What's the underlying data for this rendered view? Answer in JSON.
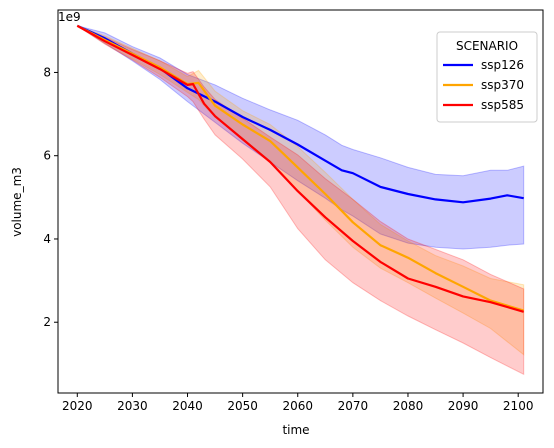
{
  "chart_data": {
    "type": "line",
    "title": "",
    "xlabel": "time",
    "ylabel": "volume_m3",
    "y_offset_label": "1e9",
    "xlim": [
      2016.5,
      2104.5
    ],
    "ylim": [
      0.3,
      9.5
    ],
    "x_ticks": [
      2020,
      2030,
      2040,
      2050,
      2060,
      2070,
      2080,
      2090,
      2100
    ],
    "y_ticks": [
      2,
      4,
      6,
      8
    ],
    "y_tick_labels": [
      "2",
      "4",
      "6",
      "8"
    ],
    "legend": {
      "title": "SCENARIO",
      "placement": "top-right"
    },
    "grid": false,
    "series": [
      {
        "name": "ssp126",
        "color": "#0000ff",
        "x": [
          2020,
          2025,
          2030,
          2035,
          2040,
          2045,
          2050,
          2055,
          2060,
          2065,
          2068,
          2070,
          2075,
          2080,
          2085,
          2090,
          2095,
          2098,
          2101
        ],
        "y": [
          9.12,
          8.82,
          8.45,
          8.1,
          7.62,
          7.3,
          6.93,
          6.62,
          6.27,
          5.88,
          5.65,
          5.58,
          5.25,
          5.08,
          4.95,
          4.88,
          4.97,
          5.05,
          4.98
        ],
        "lower": [
          9.12,
          8.7,
          8.28,
          7.83,
          7.3,
          6.8,
          6.3,
          5.85,
          5.4,
          4.98,
          4.7,
          4.55,
          4.12,
          3.9,
          3.8,
          3.76,
          3.8,
          3.85,
          3.88
        ],
        "upper": [
          9.12,
          8.95,
          8.62,
          8.35,
          7.95,
          7.7,
          7.38,
          7.1,
          6.85,
          6.5,
          6.25,
          6.15,
          5.95,
          5.72,
          5.55,
          5.52,
          5.65,
          5.65,
          5.75
        ]
      },
      {
        "name": "ssp370",
        "color": "#ffa500",
        "x": [
          2020,
          2025,
          2030,
          2035,
          2040,
          2042,
          2045,
          2050,
          2055,
          2060,
          2065,
          2070,
          2075,
          2080,
          2085,
          2090,
          2095,
          2101
        ],
        "y": [
          9.12,
          8.78,
          8.45,
          8.12,
          7.72,
          7.75,
          7.2,
          6.75,
          6.35,
          5.72,
          5.08,
          4.4,
          3.85,
          3.55,
          3.18,
          2.85,
          2.52,
          2.28
        ],
        "lower": [
          9.12,
          8.7,
          8.32,
          7.95,
          7.52,
          7.35,
          6.92,
          6.42,
          5.85,
          5.15,
          4.45,
          3.8,
          3.3,
          2.95,
          2.58,
          2.22,
          1.85,
          1.22
        ],
        "upper": [
          9.12,
          8.88,
          8.58,
          8.28,
          7.9,
          8.05,
          7.55,
          7.08,
          6.75,
          6.22,
          5.6,
          4.95,
          4.35,
          3.95,
          3.6,
          3.35,
          3.05,
          2.9
        ]
      },
      {
        "name": "ssp585",
        "color": "#ff0000",
        "x": [
          2020,
          2025,
          2030,
          2035,
          2040,
          2041,
          2043,
          2045,
          2050,
          2055,
          2060,
          2065,
          2070,
          2075,
          2080,
          2085,
          2090,
          2095,
          2101
        ],
        "y": [
          9.12,
          8.75,
          8.42,
          8.08,
          7.7,
          7.72,
          7.25,
          6.95,
          6.4,
          5.85,
          5.15,
          4.52,
          3.95,
          3.45,
          3.05,
          2.85,
          2.62,
          2.48,
          2.25
        ],
        "lower": [
          9.12,
          8.68,
          8.3,
          7.88,
          7.42,
          7.3,
          6.88,
          6.5,
          5.92,
          5.25,
          4.25,
          3.5,
          2.95,
          2.52,
          2.15,
          1.82,
          1.5,
          1.15,
          0.75
        ],
        "upper": [
          9.12,
          8.85,
          8.55,
          8.28,
          7.98,
          8.02,
          7.65,
          7.35,
          6.9,
          6.45,
          6.02,
          5.45,
          4.95,
          4.42,
          4.0,
          3.75,
          3.5,
          3.15,
          2.8
        ]
      }
    ]
  }
}
